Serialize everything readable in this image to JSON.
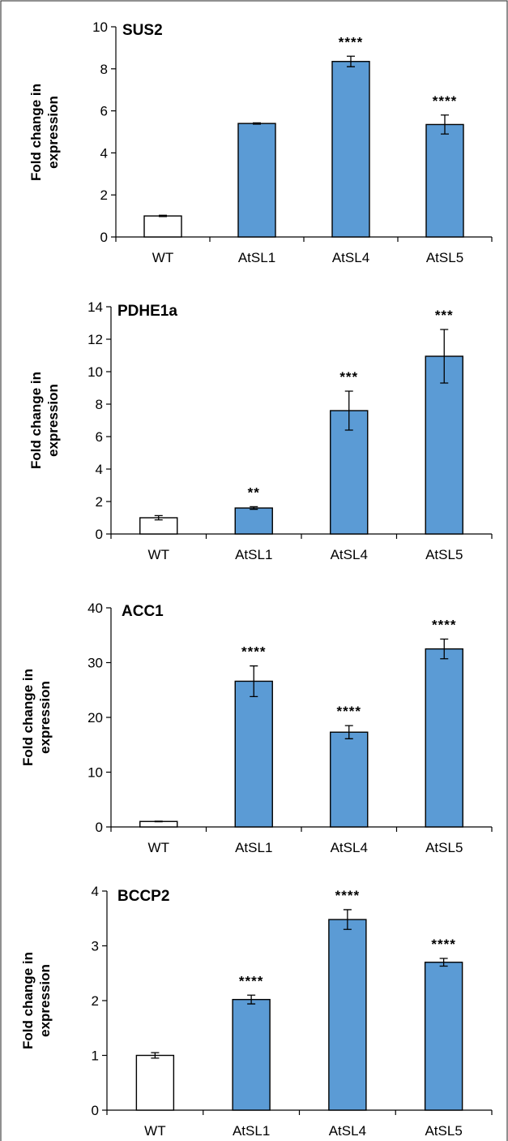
{
  "colors": {
    "control_bar": "#ffffff",
    "transgenic_bar": "#5b9bd5",
    "axis": "#000000"
  },
  "chart_data": [
    {
      "type": "bar",
      "title": "SUS2",
      "ylabel": "Fold change in expression",
      "categories": [
        "WT",
        "AtSL1",
        "AtSL4",
        "AtSL5"
      ],
      "values": [
        1.0,
        5.4,
        8.35,
        5.35
      ],
      "errors": [
        0.03,
        0.03,
        0.25,
        0.45
      ],
      "significance": [
        "",
        "",
        "****",
        "****"
      ],
      "ylim": [
        0,
        10
      ],
      "yticks": [
        "0",
        "2",
        "4",
        "6",
        "8",
        "10"
      ]
    },
    {
      "type": "bar",
      "title": "PDHE1a",
      "ylabel": "Fold change in expression",
      "categories": [
        "WT",
        "AtSL1",
        "AtSL4",
        "AtSL5"
      ],
      "values": [
        1.0,
        1.6,
        7.6,
        10.95
      ],
      "errors": [
        0.13,
        0.08,
        1.2,
        1.65
      ],
      "significance": [
        "",
        "**",
        "***",
        "***"
      ],
      "ylim": [
        0,
        14
      ],
      "yticks": [
        "0",
        "2",
        "4",
        "6",
        "8",
        "10",
        "12",
        "14"
      ]
    },
    {
      "type": "bar",
      "title": "ACC1",
      "ylabel": "Fold change in expression",
      "categories": [
        "WT",
        "AtSL1",
        "AtSL4",
        "AtSL5"
      ],
      "values": [
        1.0,
        26.6,
        17.3,
        32.5
      ],
      "errors": [
        0.05,
        2.8,
        1.2,
        1.8
      ],
      "significance": [
        "",
        "****",
        "****",
        "****"
      ],
      "ylim": [
        0,
        40
      ],
      "yticks": [
        "0",
        "10",
        "20",
        "30",
        "40"
      ]
    },
    {
      "type": "bar",
      "title": "BCCP2",
      "ylabel": "Fold change in expression",
      "categories": [
        "WT",
        "AtSL1",
        "AtSL4",
        "AtSL5"
      ],
      "values": [
        1.0,
        2.02,
        3.48,
        2.7
      ],
      "errors": [
        0.05,
        0.08,
        0.18,
        0.07
      ],
      "significance": [
        "",
        "****",
        "****",
        "****"
      ],
      "ylim": [
        0,
        4
      ],
      "yticks": [
        "0",
        "1",
        "2",
        "3",
        "4"
      ]
    }
  ]
}
